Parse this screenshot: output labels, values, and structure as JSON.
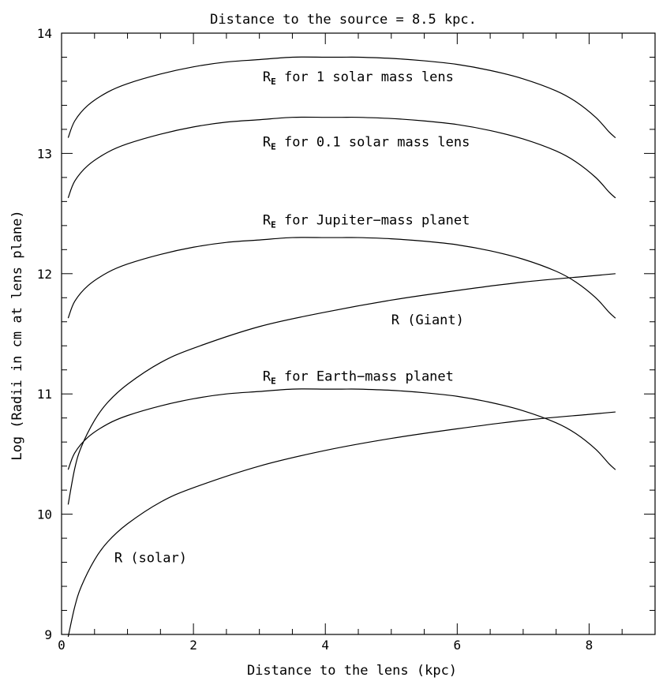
{
  "chart_data": {
    "type": "line",
    "title": "Distance to the source = 8.5 kpc.",
    "xlabel": "Distance to the lens (kpc)",
    "ylabel": "Log (Radii in cm at lens plane)",
    "xlim": [
      0,
      9
    ],
    "ylim": [
      9,
      14
    ],
    "x_ticks": [
      0,
      2,
      4,
      6,
      8
    ],
    "y_ticks": [
      9,
      10,
      11,
      12,
      13,
      14
    ],
    "grid": false,
    "series": [
      {
        "name": "R_E for 1 solar mass lens",
        "x": [
          0.1,
          0.2,
          0.4,
          0.7,
          1,
          1.5,
          2,
          2.5,
          3,
          3.5,
          4,
          4.25,
          4.5,
          5,
          5.5,
          6,
          6.5,
          7,
          7.5,
          7.8,
          8.1,
          8.3,
          8.4
        ],
        "y": [
          13.13,
          13.27,
          13.4,
          13.51,
          13.58,
          13.66,
          13.72,
          13.76,
          13.78,
          13.8,
          13.8,
          13.8,
          13.8,
          13.79,
          13.77,
          13.74,
          13.69,
          13.62,
          13.52,
          13.43,
          13.3,
          13.18,
          13.13
        ]
      },
      {
        "name": "R_E for 0.1 solar mass lens",
        "x": [
          0.1,
          0.2,
          0.4,
          0.7,
          1,
          1.5,
          2,
          2.5,
          3,
          3.5,
          4,
          4.25,
          4.5,
          5,
          5.5,
          6,
          6.5,
          7,
          7.5,
          7.8,
          8.1,
          8.3,
          8.4
        ],
        "y": [
          12.63,
          12.77,
          12.9,
          13.01,
          13.08,
          13.16,
          13.22,
          13.26,
          13.28,
          13.3,
          13.3,
          13.3,
          13.3,
          13.29,
          13.27,
          13.24,
          13.19,
          13.12,
          13.02,
          12.93,
          12.8,
          12.68,
          12.63
        ]
      },
      {
        "name": "R_E for Jupiter-mass planet",
        "x": [
          0.1,
          0.2,
          0.4,
          0.7,
          1,
          1.5,
          2,
          2.5,
          3,
          3.5,
          4,
          4.25,
          4.5,
          5,
          5.5,
          6,
          6.5,
          7,
          7.5,
          7.8,
          8.1,
          8.3,
          8.4
        ],
        "y": [
          11.63,
          11.77,
          11.9,
          12.01,
          12.08,
          12.16,
          12.22,
          12.26,
          12.28,
          12.3,
          12.3,
          12.3,
          12.3,
          12.29,
          12.27,
          12.24,
          12.19,
          12.12,
          12.02,
          11.93,
          11.8,
          11.68,
          11.63
        ]
      },
      {
        "name": "R_E for Earth-mass planet",
        "x": [
          0.1,
          0.2,
          0.4,
          0.7,
          1,
          1.5,
          2,
          2.5,
          3,
          3.5,
          4,
          4.25,
          4.5,
          5,
          5.5,
          6,
          6.5,
          7,
          7.5,
          7.8,
          8.1,
          8.3,
          8.4
        ],
        "y": [
          10.37,
          10.51,
          10.64,
          10.75,
          10.82,
          10.9,
          10.96,
          11.0,
          11.02,
          11.04,
          11.04,
          11.04,
          11.04,
          11.03,
          11.01,
          10.98,
          10.93,
          10.86,
          10.76,
          10.67,
          10.54,
          10.42,
          10.37
        ]
      },
      {
        "name": "R (Giant)",
        "x": [
          0.1,
          0.2,
          0.3,
          0.5,
          0.7,
          1,
          1.5,
          2,
          3,
          4,
          5,
          6,
          7,
          8,
          8.4
        ],
        "y": [
          10.08,
          10.38,
          10.56,
          10.78,
          10.93,
          11.08,
          11.26,
          11.38,
          11.56,
          11.68,
          11.78,
          11.86,
          11.93,
          11.98,
          12.0
        ]
      },
      {
        "name": "R (solar)",
        "x": [
          0.1,
          0.2,
          0.3,
          0.5,
          0.7,
          1,
          1.5,
          2,
          3,
          4,
          5,
          6,
          7,
          8,
          8.4
        ],
        "y": [
          8.98,
          9.23,
          9.4,
          9.62,
          9.77,
          9.92,
          10.1,
          10.22,
          10.4,
          10.53,
          10.63,
          10.71,
          10.78,
          10.83,
          10.85
        ]
      }
    ],
    "annotations": [
      {
        "id": "re-1",
        "text_main": "R",
        "text_sub": "E",
        "text_rest": " for 1 solar mass lens",
        "x": 3.05,
        "y": 13.6
      },
      {
        "id": "re-01",
        "text_main": "R",
        "text_sub": "E",
        "text_rest": " for 0.1 solar mass lens",
        "x": 3.05,
        "y": 13.06
      },
      {
        "id": "re-jup",
        "text_main": "R",
        "text_sub": "E",
        "text_rest": " for Jupiter−mass planet",
        "x": 3.05,
        "y": 12.41
      },
      {
        "id": "r-giant",
        "text_main": "R (Giant)",
        "text_sub": "",
        "text_rest": "",
        "x": 5.0,
        "y": 11.58
      },
      {
        "id": "re-earth",
        "text_main": "R",
        "text_sub": "E",
        "text_rest": " for Earth−mass planet",
        "x": 3.05,
        "y": 11.11
      },
      {
        "id": "r-solar",
        "text_main": "R (solar)",
        "text_sub": "",
        "text_rest": "",
        "x": 0.8,
        "y": 9.6
      }
    ]
  }
}
